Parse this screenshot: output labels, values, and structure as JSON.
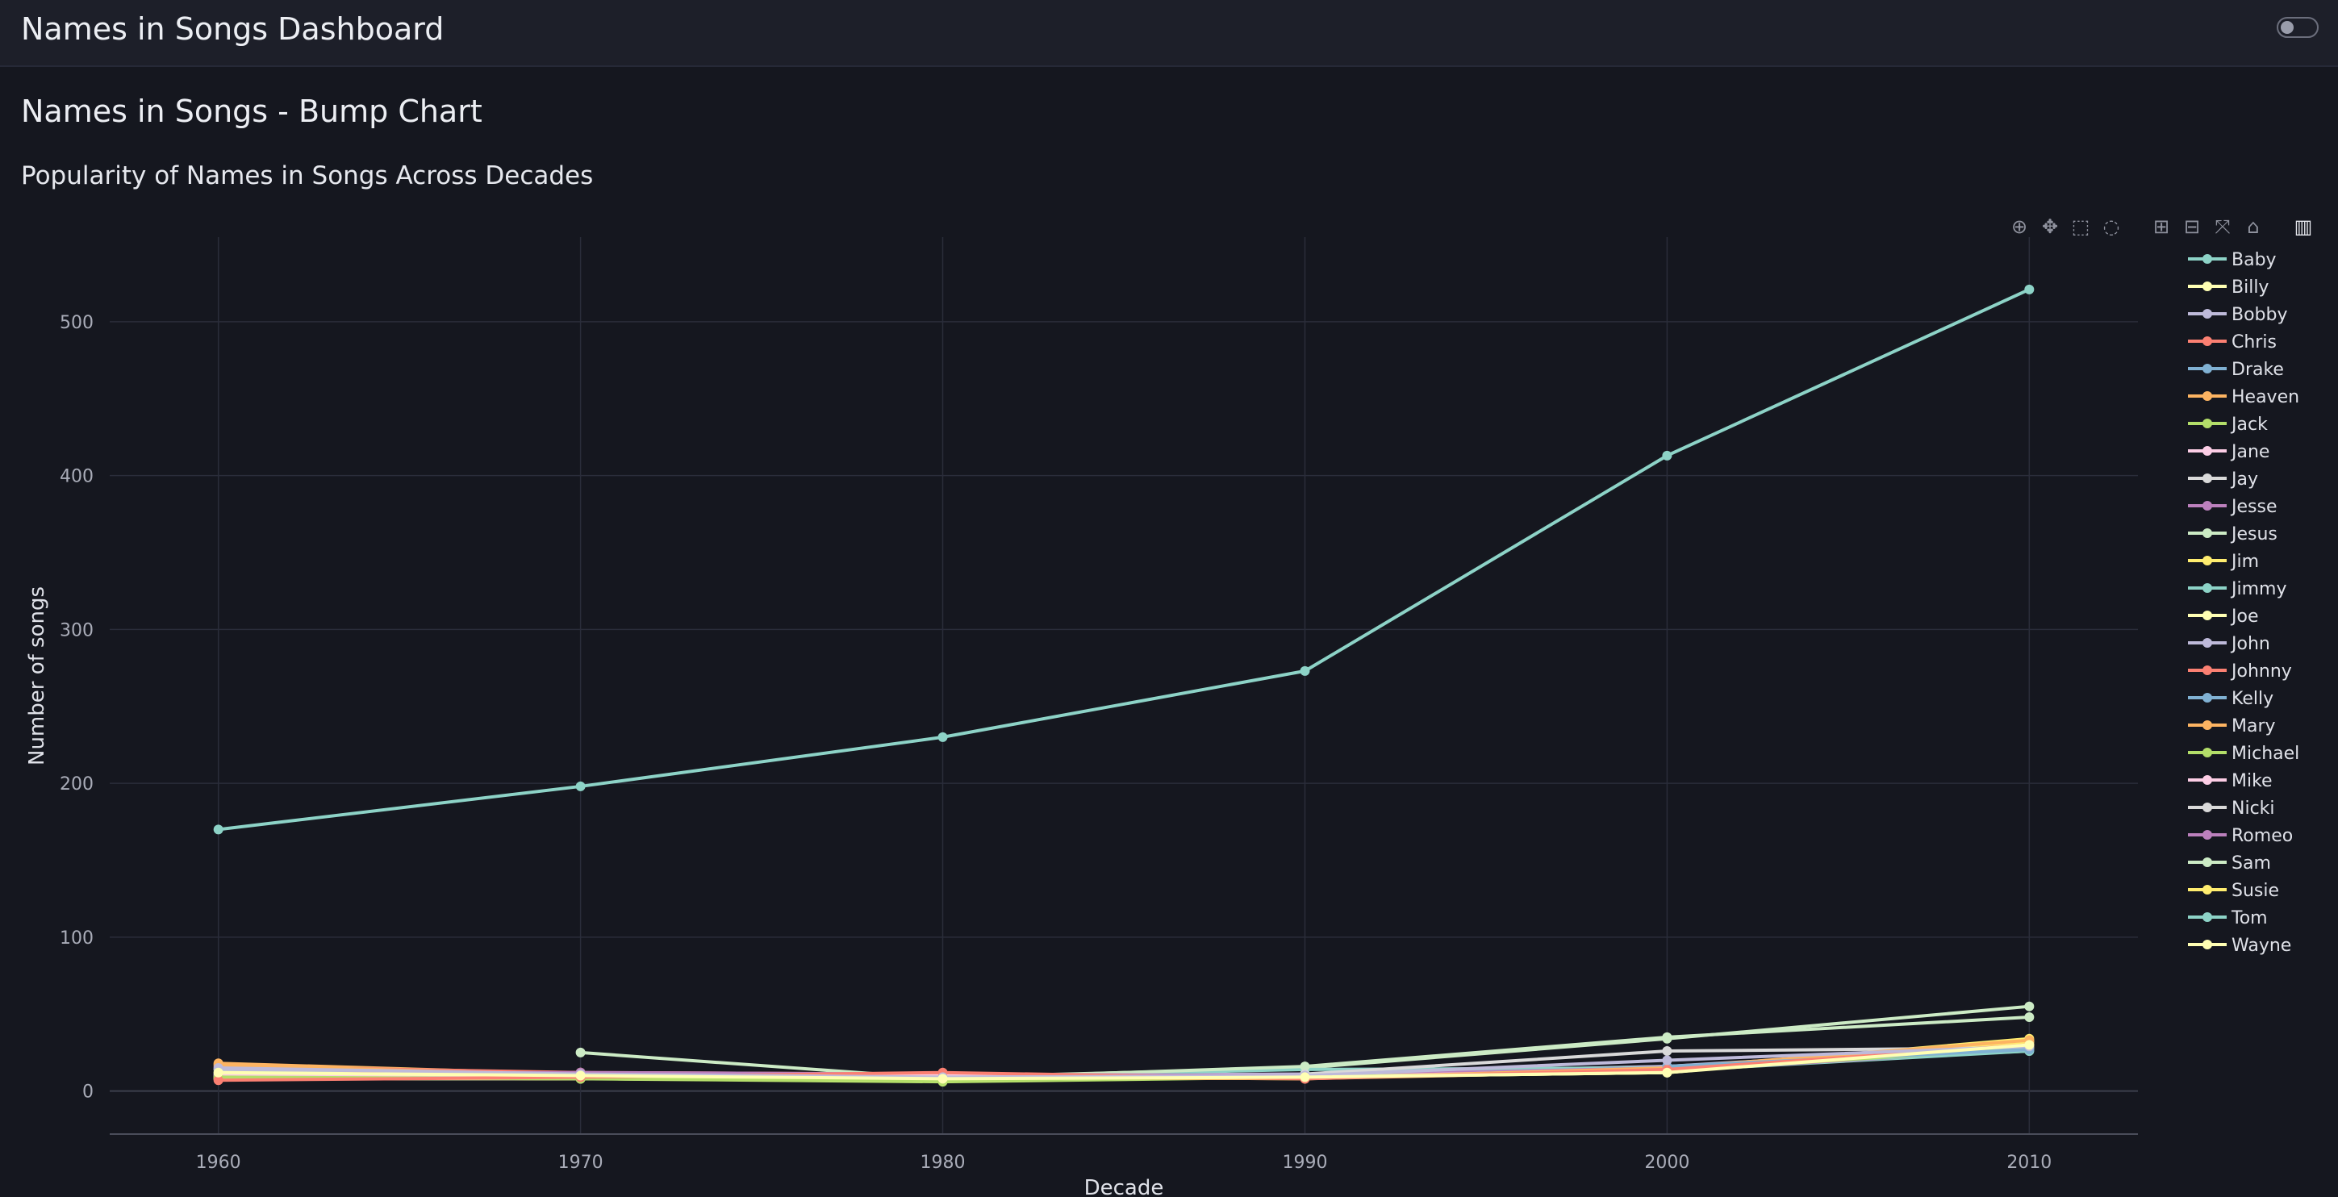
{
  "app": {
    "title": "Names in Songs Dashboard"
  },
  "page": {
    "heading": "Names in Songs - Bump Chart"
  },
  "modebar": [
    {
      "name": "zoom-icon",
      "glyph": "⊕"
    },
    {
      "name": "pan-icon",
      "glyph": "✥"
    },
    {
      "name": "box-select-icon",
      "glyph": "⬚"
    },
    {
      "name": "lasso-select-icon",
      "glyph": "◌"
    },
    {
      "name": "zoom-in-icon",
      "glyph": "⊞"
    },
    {
      "name": "zoom-out-icon",
      "glyph": "⊟"
    },
    {
      "name": "autoscale-icon",
      "glyph": "⤧"
    },
    {
      "name": "reset-axes-icon",
      "glyph": "⌂"
    },
    {
      "name": "plotly-logo-icon",
      "glyph": "▥"
    }
  ],
  "chart_data": {
    "type": "line",
    "title": "Popularity of Names in Songs Across Decades",
    "xlabel": "Decade",
    "ylabel": "Number of songs",
    "x": [
      1960,
      1970,
      1980,
      1990,
      2000,
      2010
    ],
    "xlim": [
      1957,
      2013
    ],
    "ylim": [
      -28,
      555
    ],
    "yticks": [
      0,
      100,
      200,
      300,
      400,
      500
    ],
    "grid": true,
    "legend": "right",
    "series": [
      {
        "name": "Baby",
        "color": "#8dd3c7",
        "values": [
          170,
          198,
          230,
          273,
          413,
          521
        ]
      },
      {
        "name": "Billy",
        "color": "#ffffb3",
        "values": [
          12,
          10,
          8,
          9,
          12,
          30
        ]
      },
      {
        "name": "Bobby",
        "color": "#bebada",
        "values": [
          15,
          11,
          9,
          10,
          20,
          29
        ]
      },
      {
        "name": "Chris",
        "color": "#fb8072",
        "values": [
          7,
          9,
          12,
          8,
          14,
          30
        ]
      },
      {
        "name": "Drake",
        "color": "#80b1d3",
        "values": [
          null,
          null,
          null,
          null,
          16,
          27
        ]
      },
      {
        "name": "Heaven",
        "color": "#fdb462",
        "values": [
          17,
          10,
          9,
          8,
          15,
          33
        ]
      },
      {
        "name": "Jack",
        "color": "#b3de69",
        "values": [
          9,
          8,
          7,
          9,
          13,
          28
        ]
      },
      {
        "name": "Jane",
        "color": "#fccde5",
        "values": [
          10,
          9,
          10,
          9,
          14,
          30
        ]
      },
      {
        "name": "Jay",
        "color": "#d9d9d9",
        "values": [
          null,
          null,
          null,
          11,
          26,
          28
        ]
      },
      {
        "name": "Jesse",
        "color": "#bc80bd",
        "values": [
          11,
          12,
          11,
          10,
          15,
          28
        ]
      },
      {
        "name": "Jesus",
        "color": "#ccebc5",
        "values": [
          null,
          25,
          8,
          16,
          35,
          48
        ]
      },
      {
        "name": "Jim",
        "color": "#ffed6f",
        "values": [
          8,
          10,
          9,
          10,
          14,
          31
        ]
      },
      {
        "name": "Jimmy",
        "color": "#8dd3c7",
        "values": [
          12,
          10,
          9,
          14,
          15,
          26
        ]
      },
      {
        "name": "Joe",
        "color": "#ffffb3",
        "values": [
          9,
          8,
          7,
          9,
          12,
          32
        ]
      },
      {
        "name": "John",
        "color": "#bebada",
        "values": [
          14,
          11,
          10,
          11,
          16,
          30
        ]
      },
      {
        "name": "Johnny",
        "color": "#fb8072",
        "values": [
          16,
          12,
          11,
          9,
          14,
          29
        ]
      },
      {
        "name": "Kelly",
        "color": "#80b1d3",
        "values": [
          null,
          null,
          9,
          10,
          16,
          28
        ]
      },
      {
        "name": "Mary",
        "color": "#fdb462",
        "values": [
          18,
          11,
          9,
          8,
          13,
          32
        ]
      },
      {
        "name": "Michael",
        "color": "#b3de69",
        "values": [
          null,
          8,
          6,
          9,
          14,
          30
        ]
      },
      {
        "name": "Mike",
        "color": "#fccde5",
        "values": [
          null,
          null,
          8,
          9,
          15,
          29
        ]
      },
      {
        "name": "Nicki",
        "color": "#d9d9d9",
        "values": [
          null,
          null,
          null,
          null,
          14,
          30
        ]
      },
      {
        "name": "Romeo",
        "color": "#bc80bd",
        "values": [
          10,
          9,
          10,
          11,
          13,
          27
        ]
      },
      {
        "name": "Sam",
        "color": "#ccebc5",
        "values": [
          14,
          12,
          9,
          15,
          34,
          55
        ]
      },
      {
        "name": "Susie",
        "color": "#ffed6f",
        "values": [
          9,
          8,
          7,
          9,
          14,
          34
        ]
      },
      {
        "name": "Tom",
        "color": "#8dd3c7",
        "values": [
          11,
          9,
          8,
          9,
          13,
          26
        ]
      },
      {
        "name": "Wayne",
        "color": "#ffffb3",
        "values": [
          8,
          8,
          7,
          9,
          12,
          33
        ]
      }
    ]
  }
}
